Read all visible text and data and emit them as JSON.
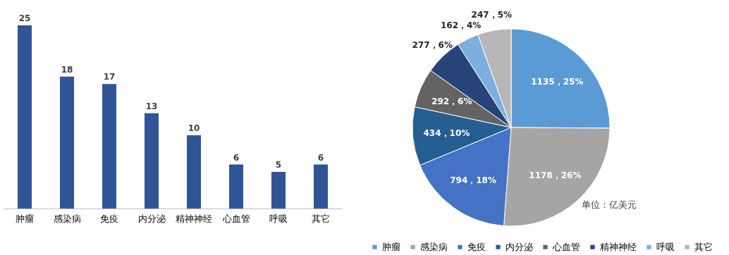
{
  "chart_data": [
    {
      "type": "bar",
      "categories": [
        "肿瘤",
        "感染病",
        "免疫",
        "内分泌",
        "精神神经",
        "心血管",
        "呼吸",
        "其它"
      ],
      "values": [
        25,
        18,
        17,
        13,
        10,
        6,
        5,
        6
      ],
      "color": "#2f5597",
      "data_labels": true,
      "legend": false
    },
    {
      "type": "pie",
      "categories": [
        "肿瘤",
        "感染病",
        "免疫",
        "内分泌",
        "心血管",
        "精神神经",
        "呼吸",
        "其它"
      ],
      "values": [
        1135,
        1178,
        794,
        434,
        292,
        277,
        162,
        247
      ],
      "colors": [
        "#5b9bd5",
        "#a5a5a5",
        "#4472c4",
        "#255e91",
        "#636363",
        "#264478",
        "#7cafdd",
        "#b7b7b7"
      ],
      "value_labels": [
        "1135，25%",
        "1178，26%",
        "794，18%",
        "434，10%",
        "292，6%",
        "277，6%",
        "162，4%",
        "247，5%"
      ],
      "legend": "bottom",
      "annotations": [
        "单位：亿美元"
      ]
    }
  ]
}
